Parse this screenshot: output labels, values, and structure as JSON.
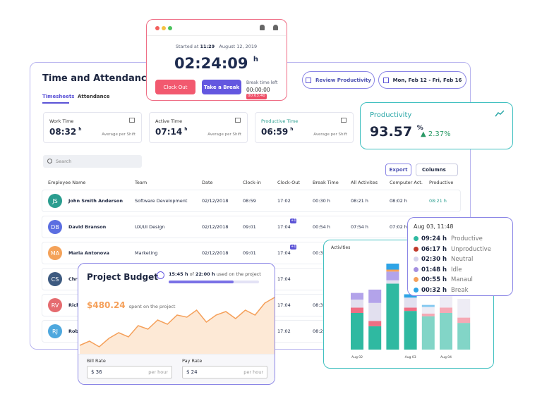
{
  "timer": {
    "started_label": "Started at",
    "started_time": "11:29",
    "date": "August 12, 2019",
    "elapsed": "02:24:09",
    "unit": "h",
    "clock_out": "Clock Out",
    "take_break": "Take a Break",
    "break_label": "Break time left",
    "break_left": "00:00:00",
    "badge": "00:03:40"
  },
  "main": {
    "title": "Time and Attendance",
    "tabs": [
      "Timesheets",
      "Attendance"
    ],
    "review_button": "Review Productivity",
    "date_range": "Mon, Feb 12 - Fri, Feb 16",
    "stats": [
      {
        "label": "Work Time",
        "value": "08:32",
        "unit": "h",
        "note": "Average per Shift"
      },
      {
        "label": "Active Time",
        "value": "07:14",
        "unit": "h",
        "note": "Average per Shift"
      },
      {
        "label": "Productive Time",
        "value": "06:59",
        "unit": "h",
        "note": "Average per Shift"
      }
    ],
    "search": "Search",
    "export": "Export",
    "columns": "Columns",
    "table": {
      "headers": [
        "Employee Name",
        "Team",
        "Date",
        "Clock-in",
        "Clock-Out",
        "Break Time",
        "All Activites",
        "Computer Act.",
        "Productive"
      ],
      "rows": [
        {
          "initials": "JS",
          "avatar": "#2a9d8f",
          "badge": null,
          "cells": [
            "John Smith Anderson",
            "Software Development",
            "02/12/2018",
            "08:59",
            "17:02",
            "00:30 h",
            "08:21 h",
            "08:02 h",
            "08:21 h"
          ]
        },
        {
          "initials": "DB",
          "avatar": "#5b6ee1",
          "badge": "+1",
          "cells": [
            "David Branson",
            "UX/UI Design",
            "02/12/2018",
            "09:01",
            "17:04",
            "00:54 h",
            "07:54 h",
            "07:02 h",
            null
          ]
        },
        {
          "initials": "MA",
          "avatar": "#f4a259",
          "badge": "+1",
          "cells": [
            "Maria Antonova",
            "Marketing",
            "02/12/2018",
            "09:01",
            "17:04",
            "00:30 h",
            null,
            null,
            null
          ]
        },
        {
          "initials": "CS",
          "avatar": "#3d5a80",
          "badge": null,
          "cells": [
            "Chri",
            null,
            null,
            null,
            "17:04",
            null,
            null,
            null,
            null
          ]
        },
        {
          "initials": "RV",
          "avatar": "#e56b6f",
          "badge": null,
          "cells": [
            "Rich",
            null,
            null,
            null,
            "17:04",
            "08:34",
            null,
            null,
            null
          ]
        },
        {
          "initials": "RJ",
          "avatar": "#4ea8de",
          "badge": null,
          "cells": [
            "Rob",
            null,
            null,
            null,
            "17:02",
            "08:21",
            null,
            null,
            null
          ]
        }
      ]
    }
  },
  "productivity": {
    "title": "Productivity",
    "value": "93.57",
    "unit": "%",
    "change": "2.37%"
  },
  "budget": {
    "title": "Project Budget",
    "used": "15:45 h",
    "of": "of",
    "total": "22:00 h",
    "used_note": "used on the project",
    "spent": "$480.24",
    "spent_note": "spent on the project",
    "trend": [
      12,
      18,
      10,
      22,
      30,
      24,
      40,
      35,
      48,
      42,
      55,
      52,
      62,
      45,
      55,
      60,
      50,
      62,
      55,
      72,
      80
    ],
    "bill_label": "Bill Rate",
    "bill_value": "$ 36",
    "bill_unit": "per hour",
    "pay_label": "Pay Rate",
    "pay_value": "$ 24",
    "pay_unit": "per hour"
  },
  "activities": {
    "type": "bar",
    "title": "Activities",
    "categories": [
      "Aug 02",
      null,
      null,
      "Aug 03",
      null,
      "Aug 04",
      null
    ],
    "series": [
      {
        "name": "Productive",
        "color": "#2fb9a1",
        "values": [
          5.5,
          3.5,
          9.9,
          5.8,
          5.0,
          5.5,
          4.0
        ]
      },
      {
        "name": "Unproductive",
        "color": "#ef6f84",
        "values": [
          0.8,
          0.8,
          0,
          0.5,
          0.4,
          0.8,
          0.8
        ]
      },
      {
        "name": "Neutral",
        "color": "#e2e0ef",
        "values": [
          1.2,
          2.7,
          0.5,
          1.5,
          1.0,
          2.5,
          2.8
        ]
      },
      {
        "name": "Idle",
        "color": "#b3a3ea",
        "values": [
          1.0,
          2.0,
          1.3,
          0,
          0,
          0,
          0
        ]
      },
      {
        "name": "Manaul",
        "color": "#f5a05a",
        "values": [
          0,
          0,
          0.3,
          0,
          0,
          0,
          0
        ]
      },
      {
        "name": "Break",
        "color": "#2ea4e6",
        "values": [
          0,
          0,
          0.9,
          0.5,
          0.3,
          0,
          0
        ]
      }
    ]
  },
  "tooltip": {
    "title": "Aug 03, 11:48",
    "items": [
      {
        "value": "09:24 h",
        "label": "Productive",
        "color": "#2fb9a1"
      },
      {
        "value": "06:17 h",
        "label": "Unproductive",
        "color": "#c0392b"
      },
      {
        "value": "02:30 h",
        "label": "Neutral",
        "color": "#d6d3ec"
      },
      {
        "value": "01:48 h",
        "label": "Idle",
        "color": "#a48fe0"
      },
      {
        "value": "00:55 h",
        "label": "Manaul",
        "color": "#f5a05a"
      },
      {
        "value": "00:32 h",
        "label": "Break",
        "color": "#2ea4e6"
      }
    ]
  }
}
